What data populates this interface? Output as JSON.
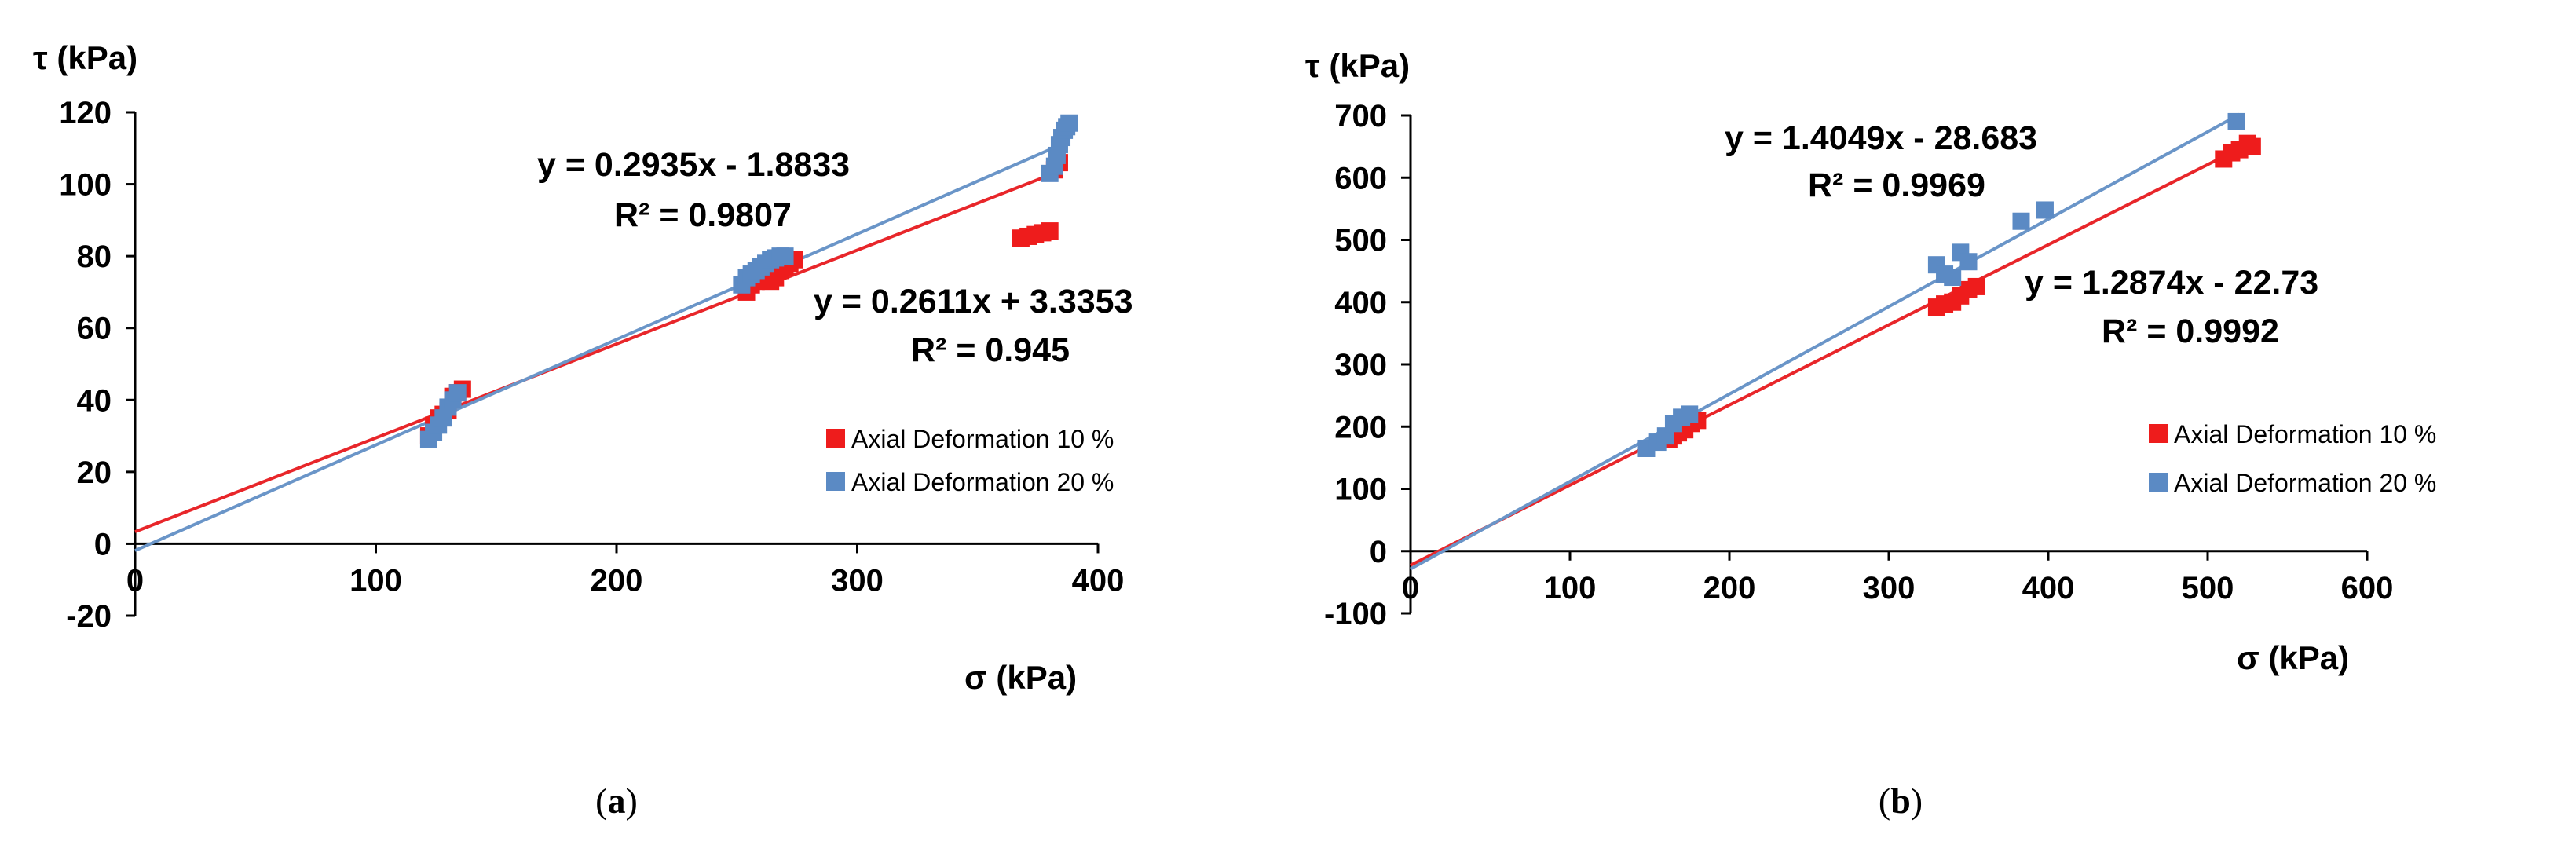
{
  "colors": {
    "series10": "#ee1c1c",
    "series20": "#5b8ac4",
    "fit10": "#e8262a",
    "fit20": "#6a95c8",
    "axis": "#000000"
  },
  "chart_data": [
    {
      "panel": "a",
      "caption": {
        "open": "(",
        "letter": "a",
        "close": ")"
      },
      "type": "scatter",
      "ylabel": "τ (kPa)",
      "xlabel": "σ (kPa)",
      "xlim": [
        0,
        400
      ],
      "ylim": [
        -20,
        120
      ],
      "xticks": [
        0,
        100,
        200,
        300,
        400
      ],
      "yticks": [
        -20,
        0,
        20,
        40,
        60,
        80,
        100,
        120
      ],
      "legend": [
        "Axial Deformation 10 %",
        "Axial Deformation 20 %"
      ],
      "series": [
        {
          "name": "Axial Deformation 10 %",
          "color": "series10",
          "points": [
            [
              122,
              30
            ],
            [
              124,
              33
            ],
            [
              126,
              35
            ],
            [
              128,
              36
            ],
            [
              130,
              37
            ],
            [
              132,
              41
            ],
            [
              134,
              42
            ],
            [
              136,
              43
            ],
            [
              254,
              70
            ],
            [
              256,
              72
            ],
            [
              258,
              73
            ],
            [
              260,
              74
            ],
            [
              262,
              75
            ],
            [
              264,
              73
            ],
            [
              266,
              74
            ],
            [
              268,
              76
            ],
            [
              270,
              77
            ],
            [
              272,
              78
            ],
            [
              274,
              79
            ],
            [
              368,
              85
            ],
            [
              371,
              85.5
            ],
            [
              374,
              86
            ],
            [
              377,
              86.5
            ],
            [
              380,
              87
            ],
            [
              382,
              104
            ],
            [
              384,
              106
            ]
          ],
          "fit": {
            "slope": 0.2611,
            "intercept": 3.3353,
            "x": [
              0,
              385
            ]
          },
          "equation": "y = 0.2611x + 3.3353",
          "r2": "R² = 0.945"
        },
        {
          "name": "Axial Deformation 20 %",
          "color": "series20",
          "points": [
            [
              122,
              29
            ],
            [
              124,
              31
            ],
            [
              126,
              33
            ],
            [
              128,
              35
            ],
            [
              130,
              38
            ],
            [
              132,
              40
            ],
            [
              134,
              42
            ],
            [
              252,
              72
            ],
            [
              254,
              74
            ],
            [
              256,
              75
            ],
            [
              258,
              76
            ],
            [
              260,
              77
            ],
            [
              262,
              78
            ],
            [
              264,
              79
            ],
            [
              266,
              79.5
            ],
            [
              268,
              80
            ],
            [
              270,
              80
            ],
            [
              380,
              103
            ],
            [
              382,
              105
            ],
            [
              383,
              108
            ],
            [
              384,
              111
            ],
            [
              385,
              113
            ],
            [
              386,
              115
            ],
            [
              387,
              116
            ],
            [
              388,
              117
            ]
          ],
          "fit": {
            "slope": 0.2935,
            "intercept": -1.8833,
            "x": [
              0,
              385
            ]
          },
          "equation": "y = 0.2935x - 1.8833",
          "r2": "R² = 0.9807"
        }
      ]
    },
    {
      "panel": "b",
      "caption": {
        "open": "(",
        "letter": "b",
        "close": ")"
      },
      "type": "scatter",
      "ylabel": "τ (kPa)",
      "xlabel": "σ (kPa)",
      "xlim": [
        0,
        600
      ],
      "ylim": [
        -100,
        700
      ],
      "xticks": [
        0,
        100,
        200,
        300,
        400,
        500,
        600
      ],
      "yticks": [
        -100,
        0,
        100,
        200,
        300,
        400,
        500,
        600,
        700
      ],
      "legend": [
        "Axial Deformation 10 %",
        "Axial Deformation 20 %"
      ],
      "series": [
        {
          "name": "Axial Deformation 10 %",
          "color": "series10",
          "points": [
            [
              162,
              180
            ],
            [
              165,
              185
            ],
            [
              168,
              190
            ],
            [
              172,
              195
            ],
            [
              176,
              205
            ],
            [
              180,
              210
            ],
            [
              330,
              392
            ],
            [
              335,
              397
            ],
            [
              340,
              400
            ],
            [
              345,
              410
            ],
            [
              350,
              420
            ],
            [
              355,
              425
            ],
            [
              510,
              630
            ],
            [
              515,
              640
            ],
            [
              520,
              645
            ],
            [
              525,
              655
            ],
            [
              528,
              650
            ]
          ],
          "fit": {
            "slope": 1.2874,
            "intercept": -22.73,
            "x": [
              0,
              520
            ]
          },
          "equation": "y = 1.2874x - 22.73",
          "r2": "R² = 0.9992"
        },
        {
          "name": "Axial Deformation 20 %",
          "color": "series20",
          "points": [
            [
              148,
              165
            ],
            [
              155,
              175
            ],
            [
              160,
              185
            ],
            [
              165,
              205
            ],
            [
              170,
              215
            ],
            [
              175,
              220
            ],
            [
              330,
              460
            ],
            [
              335,
              445
            ],
            [
              340,
              440
            ],
            [
              345,
              480
            ],
            [
              350,
              465
            ],
            [
              383,
              530
            ],
            [
              398,
              548
            ],
            [
              518,
              690
            ]
          ],
          "fit": {
            "slope": 1.4049,
            "intercept": -28.683,
            "x": [
              0,
              520
            ]
          },
          "equation": "y = 1.4049x - 28.683",
          "r2": "R² = 0.9969"
        }
      ]
    }
  ]
}
